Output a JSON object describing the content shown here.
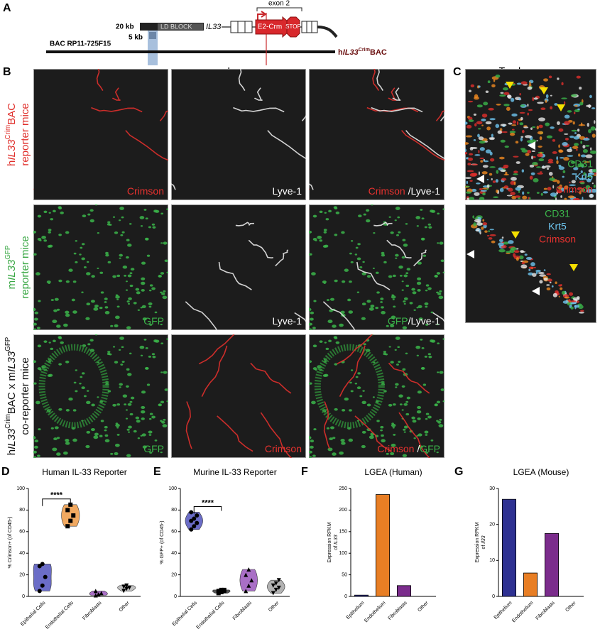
{
  "panel_a": {
    "label": "A",
    "scale_20kb": "20 kb",
    "ld_block": "LD BLOCK",
    "gene": "IL33",
    "exon": "exon 2",
    "cassette": "E2-Crm",
    "stop": "STOP",
    "scale_5kb": "5 kb",
    "bac": "BAC RP11-725F15",
    "construct": [
      {
        "text": "h"
      },
      {
        "text": "IL33",
        "style": "italic"
      },
      {
        "text": "Crim",
        "style": "sup"
      },
      {
        "text": "BAC"
      }
    ]
  },
  "panel_b": {
    "label": "B",
    "title": "Lung",
    "rows": [
      {
        "color": "#e0302c",
        "name": [
          {
            "text": "h"
          },
          {
            "text": "IL33",
            "style": "italic"
          },
          {
            "text": "Crim",
            "style": "sup"
          },
          {
            "text": "BAC"
          }
        ],
        "line2": "reporter mice",
        "images": [
          [
            {
              "text": "Crimson",
              "color": "#e8322f"
            }
          ],
          [
            {
              "text": "Lyve-1",
              "color": "#ffffff"
            }
          ],
          [
            {
              "text": "Crimson",
              "color": "#e8322f"
            },
            {
              "text": " /Lyve-1",
              "color": "#ffffff"
            }
          ]
        ]
      },
      {
        "color": "#3aa845",
        "name": [
          {
            "text": "m"
          },
          {
            "text": "IL33",
            "style": "italic"
          },
          {
            "text": "GFP",
            "style": "sup"
          }
        ],
        "line2": "reporter mice",
        "images": [
          [
            {
              "text": "GFP",
              "color": "#3bb54a"
            }
          ],
          [
            {
              "text": "Lyve-1",
              "color": "#ffffff"
            }
          ],
          [
            {
              "text": "GFP",
              "color": "#3bb54a"
            },
            {
              "text": "/Lyve-1",
              "color": "#ffffff"
            }
          ]
        ]
      },
      {
        "color": "#111111",
        "name": [
          {
            "text": "h"
          },
          {
            "text": "IL33",
            "style": "italic"
          },
          {
            "text": "Crim",
            "style": "sup"
          },
          {
            "text": "BAC x m"
          },
          {
            "text": "IL33",
            "style": "italic"
          },
          {
            "text": "GFP",
            "style": "sup"
          }
        ],
        "line2": "co-reporter mice",
        "images": [
          [
            {
              "text": "GFP",
              "color": "#3bb54a"
            }
          ],
          [
            {
              "text": "Crimson",
              "color": "#e8322f"
            }
          ],
          [
            {
              "text": "Crimson",
              "color": "#e8322f"
            },
            {
              "text": " /",
              "color": "#ffffff"
            },
            {
              "text": "GFP",
              "color": "#3bb54a"
            }
          ]
        ]
      }
    ]
  },
  "panel_c": {
    "label": "C",
    "title": "Trachea",
    "images": [
      [
        {
          "text": "CD31",
          "color": "#3bb54a"
        },
        {
          "text": "Krt5",
          "color": "#6ec6f0"
        },
        {
          "text": "Crimson",
          "color": "#e8322f"
        }
      ],
      [
        {
          "text": "CD31",
          "color": "#3bb54a"
        },
        {
          "text": "Krt5",
          "color": "#6ec6f0"
        },
        {
          "text": "Crimson",
          "color": "#e8322f"
        }
      ]
    ]
  },
  "chart_data": [
    {
      "type": "violin",
      "panel": "D",
      "title": "Human IL-33 Reporter",
      "ylabel": [
        [
          {
            "text": "% Crimson+ (of CD45-)"
          }
        ]
      ],
      "categories": [
        "Epithelial Cells",
        "Endothelial Cells",
        "Fibroblasts",
        "Other"
      ],
      "values": [
        [
          5,
          10,
          18,
          28,
          30
        ],
        [
          65,
          70,
          75,
          80,
          85
        ],
        [
          1,
          2,
          3,
          5
        ],
        [
          5,
          7,
          8,
          9,
          10
        ]
      ],
      "colors": [
        "#5b5ec2",
        "#f0a050",
        "#a060c0",
        "#bbbbbb"
      ],
      "markers": [
        "circle",
        "square",
        "triangle",
        "triangle-down"
      ],
      "ylim": [
        0,
        100
      ],
      "yticks": [
        0,
        20,
        40,
        60,
        80,
        100
      ],
      "significance": {
        "label": "****",
        "groups": [
          0,
          1
        ]
      }
    },
    {
      "type": "violin",
      "panel": "E",
      "title": "Murine IL-33 Reporter",
      "ylabel": [
        [
          {
            "text": "% GFP+ (of CD45-)"
          }
        ]
      ],
      "categories": [
        "Epithelial Cells",
        "Endothelial Cells",
        "Fibroblasts",
        "Other"
      ],
      "values": [
        [
          62,
          65,
          68,
          70,
          72,
          75,
          78
        ],
        [
          3,
          4,
          5,
          5,
          6,
          6
        ],
        [
          5,
          10,
          15,
          20,
          25
        ],
        [
          3,
          6,
          8,
          10,
          12,
          15
        ]
      ],
      "colors": [
        "#5b5ec2",
        "#444444",
        "#a060c0",
        "#aaaaaa"
      ],
      "markers": [
        "circle",
        "square",
        "triangle",
        "triangle-down"
      ],
      "ylim": [
        0,
        100
      ],
      "yticks": [
        0,
        20,
        40,
        60,
        80,
        100
      ],
      "significance": {
        "label": "****",
        "groups": [
          0,
          1
        ]
      }
    },
    {
      "type": "bar",
      "panel": "F",
      "title": "LGEA (Human)",
      "ylabel": [
        [
          {
            "text": "Expression RPKM"
          }
        ],
        [
          {
            "text": "of "
          },
          {
            "text": "IL33",
            "style": "italic"
          }
        ]
      ],
      "categories": [
        "Epithelium",
        "Endothelium",
        "Fibroblasts",
        "Other"
      ],
      "values": [
        3,
        236,
        25,
        0
      ],
      "colors": [
        "#2e3192",
        "#e87e24",
        "#7b2c8c",
        "#999999"
      ],
      "ylim": [
        0,
        250
      ],
      "yticks": [
        0,
        50,
        100,
        150,
        200,
        250
      ]
    },
    {
      "type": "bar",
      "panel": "G",
      "title": "LGEA (Mouse)",
      "ylabel": [
        [
          {
            "text": "Expression RPKM"
          }
        ],
        [
          {
            "text": "of "
          },
          {
            "text": "Il33",
            "style": "italic"
          }
        ]
      ],
      "categories": [
        "Epithelium",
        "Endothelium",
        "Fibroblasts",
        "Other"
      ],
      "values": [
        27,
        6.5,
        17.5,
        0
      ],
      "colors": [
        "#2e3192",
        "#e87e24",
        "#7b2c8c",
        "#999999"
      ],
      "ylim": [
        0,
        30
      ],
      "yticks": [
        0,
        10,
        20,
        30
      ]
    }
  ]
}
